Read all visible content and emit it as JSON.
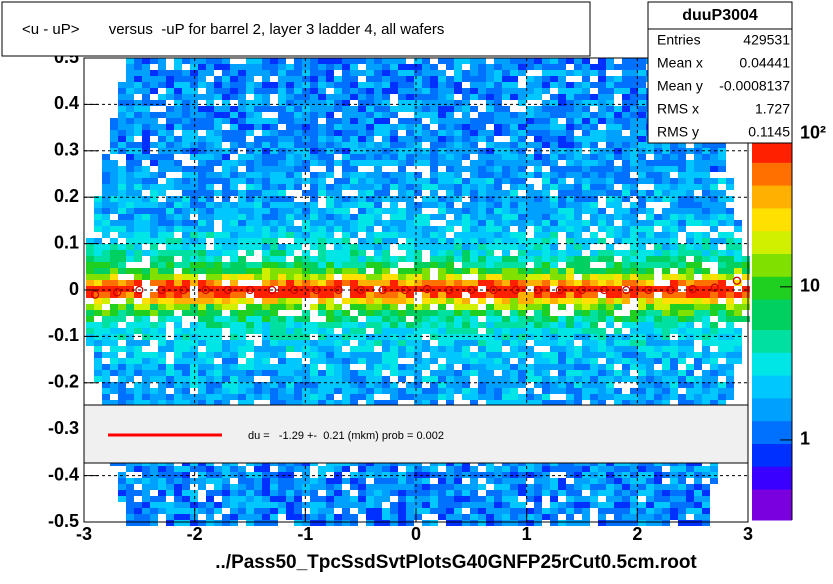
{
  "chart_data": {
    "type": "heatmap",
    "title": "<u - uP>       versus  -uP for barrel 2, layer 3 ladder 4, all wafers",
    "x_label": "../Pass50_TpcSsdSvtPlotsG40GNFP25rCut0.5cm.root",
    "xlim": [
      -3,
      3
    ],
    "xticks": [
      -3,
      -2,
      -1,
      0,
      1,
      2,
      3
    ],
    "ylim": [
      -0.5,
      0.5
    ],
    "yticks": [
      -0.5,
      -0.4,
      -0.3,
      -0.2,
      -0.1,
      0,
      0.1,
      0.2,
      0.3,
      0.4,
      0.5
    ],
    "zlim": [
      0.3,
      91
    ],
    "zticks": [
      1,
      10,
      {
        "value": 100,
        "label": "10²"
      }
    ],
    "z_log": true,
    "grid": true,
    "profile": {
      "color": "#cc0000",
      "x": [
        -2.9,
        -2.7,
        -2.5,
        -2.3,
        -2.1,
        -1.9,
        -1.7,
        -1.5,
        -1.3,
        -1.1,
        -0.9,
        -0.7,
        -0.5,
        -0.3,
        -0.1,
        0.1,
        0.3,
        0.5,
        0.7,
        0.9,
        1.1,
        1.3,
        1.5,
        1.7,
        1.9,
        2.1,
        2.3,
        2.5,
        2.7,
        2.9
      ],
      "values": [
        -0.01,
        -0.005,
        0,
        0,
        0,
        0,
        0,
        0,
        0,
        0,
        0,
        0,
        0,
        0,
        0,
        0.002,
        0,
        0,
        0,
        0,
        0,
        0,
        0,
        0,
        0,
        0,
        0,
        0.002,
        0.005,
        0.02
      ]
    },
    "stats": {
      "name": "duuP3004",
      "rows": [
        {
          "label": "Entries",
          "value": 429531
        },
        {
          "label": "Mean x",
          "value": 0.04441
        },
        {
          "label": "Mean y",
          "value": -0.0008137
        },
        {
          "label": "RMS x",
          "value": 1.727
        },
        {
          "label": "RMS y",
          "value": 0.1145
        }
      ]
    },
    "legend": {
      "color": "#ff0000",
      "text": "du =   -1.29 +-  0.21 (mkm) prob = 0.002"
    }
  }
}
